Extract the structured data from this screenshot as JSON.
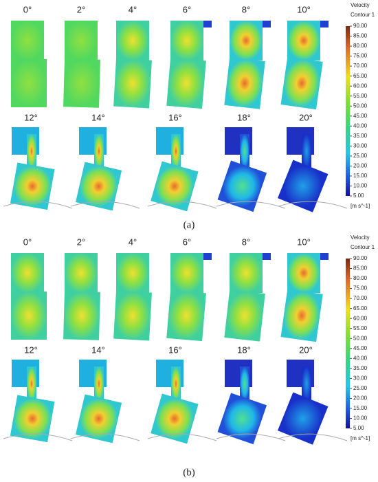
{
  "panels": [
    {
      "label": "(a)",
      "angles": [
        "0°",
        "2°",
        "4°",
        "6°",
        "8°",
        "10°",
        "12°",
        "14°",
        "16°",
        "18°",
        "20°"
      ],
      "legend": {
        "title": "Velocity",
        "subtitle": "Contour 1",
        "ticks": [
          "90.00",
          "85.00",
          "80.00",
          "75.00",
          "70.00",
          "65.00",
          "60.00",
          "55.00",
          "50.00",
          "45.00",
          "40.00",
          "35.00",
          "30.00",
          "25.00",
          "20.00",
          "15.00",
          "10.00",
          "5.00"
        ],
        "unit": "[m s^-1]"
      }
    },
    {
      "label": "(b)",
      "angles": [
        "0°",
        "2°",
        "4°",
        "6°",
        "8°",
        "10°",
        "12°",
        "14°",
        "16°",
        "18°",
        "20°"
      ],
      "legend": {
        "title": "Velocity",
        "subtitle": "Contour 1",
        "ticks": [
          "90.00",
          "85.00",
          "80.00",
          "75.00",
          "70.00",
          "65.00",
          "60.00",
          "55.00",
          "50.00",
          "45.00",
          "40.00",
          "35.00",
          "30.00",
          "25.00",
          "20.00",
          "15.00",
          "10.00",
          "5.00"
        ],
        "unit": "[m s^-1]"
      }
    }
  ]
}
